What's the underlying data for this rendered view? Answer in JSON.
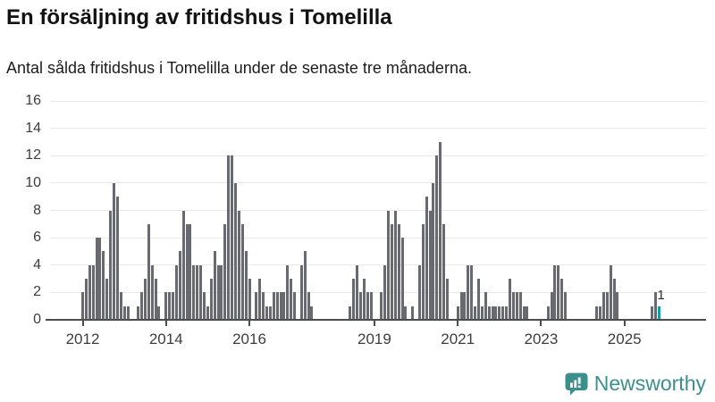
{
  "header": {
    "title": "En försäljning av fritidshus i Tomelilla",
    "subtitle": "Antal sålda fritidshus i Tomelilla under de senaste tre månaderna."
  },
  "chart_data": {
    "type": "bar",
    "title": "En försäljning av fritidshus i Tomelilla",
    "subtitle": "Antal sålda fritidshus i Tomelilla under de senaste tre månaderna.",
    "frequency": "monthly",
    "start_year": 2012,
    "start_month": 1,
    "x_start": "2012-01",
    "x_end": "2025-11",
    "ylim": [
      0,
      16
    ],
    "yticks": [
      0,
      2,
      4,
      6,
      8,
      10,
      12,
      14,
      16
    ],
    "xtick_years": [
      2012,
      2014,
      2016,
      2019,
      2021,
      2023,
      2025
    ],
    "grid": "horizontal",
    "legend": "none",
    "bar_color": "#696971",
    "highlight_color": "#12a19f",
    "highlight_index": 166,
    "annotation": {
      "text": "1",
      "target_index": 166
    },
    "values": [
      2,
      3,
      4,
      4,
      6,
      6,
      5,
      3,
      8,
      10,
      9,
      2,
      1,
      1,
      0,
      0,
      1,
      2,
      3,
      7,
      4,
      3,
      1,
      0,
      2,
      2,
      2,
      4,
      5,
      8,
      7,
      7,
      4,
      4,
      4,
      2,
      1,
      3,
      5,
      4,
      4,
      7,
      12,
      12,
      10,
      8,
      7,
      5,
      3,
      0,
      2,
      3,
      2,
      1,
      1,
      2,
      2,
      2,
      2,
      4,
      3,
      2,
      0,
      4,
      5,
      2,
      1,
      0,
      0,
      0,
      0,
      0,
      0,
      0,
      0,
      0,
      0,
      1,
      3,
      4,
      2,
      3,
      2,
      2,
      0,
      0,
      2,
      4,
      8,
      7,
      8,
      7,
      6,
      1,
      0,
      1,
      0,
      4,
      7,
      9,
      8,
      10,
      12,
      13,
      7,
      3,
      0,
      0,
      1,
      2,
      2,
      4,
      4,
      1,
      3,
      1,
      2,
      1,
      1,
      1,
      1,
      1,
      1,
      3,
      2,
      2,
      2,
      1,
      1,
      0,
      0,
      0,
      0,
      0,
      1,
      2,
      4,
      4,
      3,
      2,
      0,
      0,
      0,
      0,
      0,
      0,
      0,
      0,
      1,
      1,
      2,
      2,
      4,
      3,
      2,
      0,
      0,
      0,
      0,
      0,
      0,
      0,
      0,
      0,
      1,
      2,
      1
    ]
  },
  "footer": {
    "brand": "Newsworthy",
    "brand_color": "#3b908c"
  }
}
